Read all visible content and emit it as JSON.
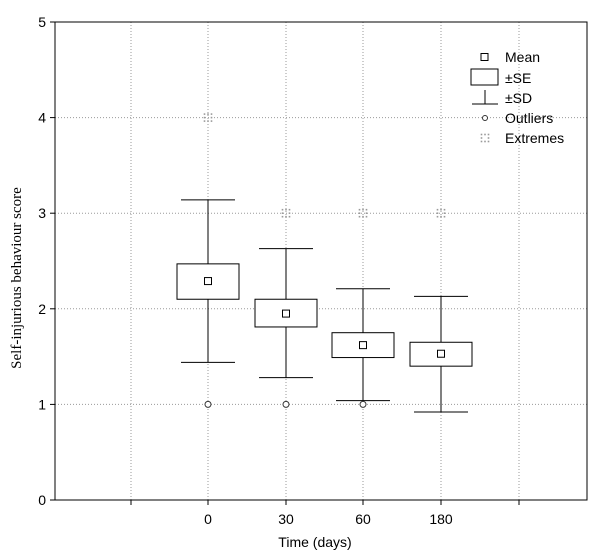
{
  "chart_data": {
    "type": "box",
    "title": "",
    "xlabel": "Time (days)",
    "ylabel": "Self-injurious behaviour score",
    "ylim": [
      0,
      5
    ],
    "yticks": [
      "0",
      "1",
      "2",
      "3",
      "4",
      "5"
    ],
    "categories": [
      "0",
      "30",
      "60",
      "180"
    ],
    "grid": true,
    "legend_position": "top-right",
    "legend": [
      {
        "key": "mean",
        "label": "Mean"
      },
      {
        "key": "se",
        "label": "±SE"
      },
      {
        "key": "sd",
        "label": "±SD"
      },
      {
        "key": "outlier",
        "label": "Outliers"
      },
      {
        "key": "extreme",
        "label": "Extremes"
      }
    ],
    "boxes": [
      {
        "category": "0",
        "mean": 2.29,
        "se_low": 2.1,
        "se_high": 2.47,
        "sd_low": 1.44,
        "sd_high": 3.14,
        "outliers": [
          1
        ],
        "extremes": [
          4
        ]
      },
      {
        "category": "30",
        "mean": 1.95,
        "se_low": 1.81,
        "se_high": 2.1,
        "sd_low": 1.28,
        "sd_high": 2.63,
        "outliers": [
          1
        ],
        "extremes": [
          3
        ]
      },
      {
        "category": "60",
        "mean": 1.62,
        "se_low": 1.49,
        "se_high": 1.75,
        "sd_low": 1.04,
        "sd_high": 2.21,
        "outliers": [
          1
        ],
        "extremes": [
          3
        ]
      },
      {
        "category": "180",
        "mean": 1.53,
        "se_low": 1.4,
        "se_high": 1.65,
        "sd_low": 0.92,
        "sd_high": 2.13,
        "outliers": [],
        "extremes": [
          3
        ]
      }
    ]
  }
}
